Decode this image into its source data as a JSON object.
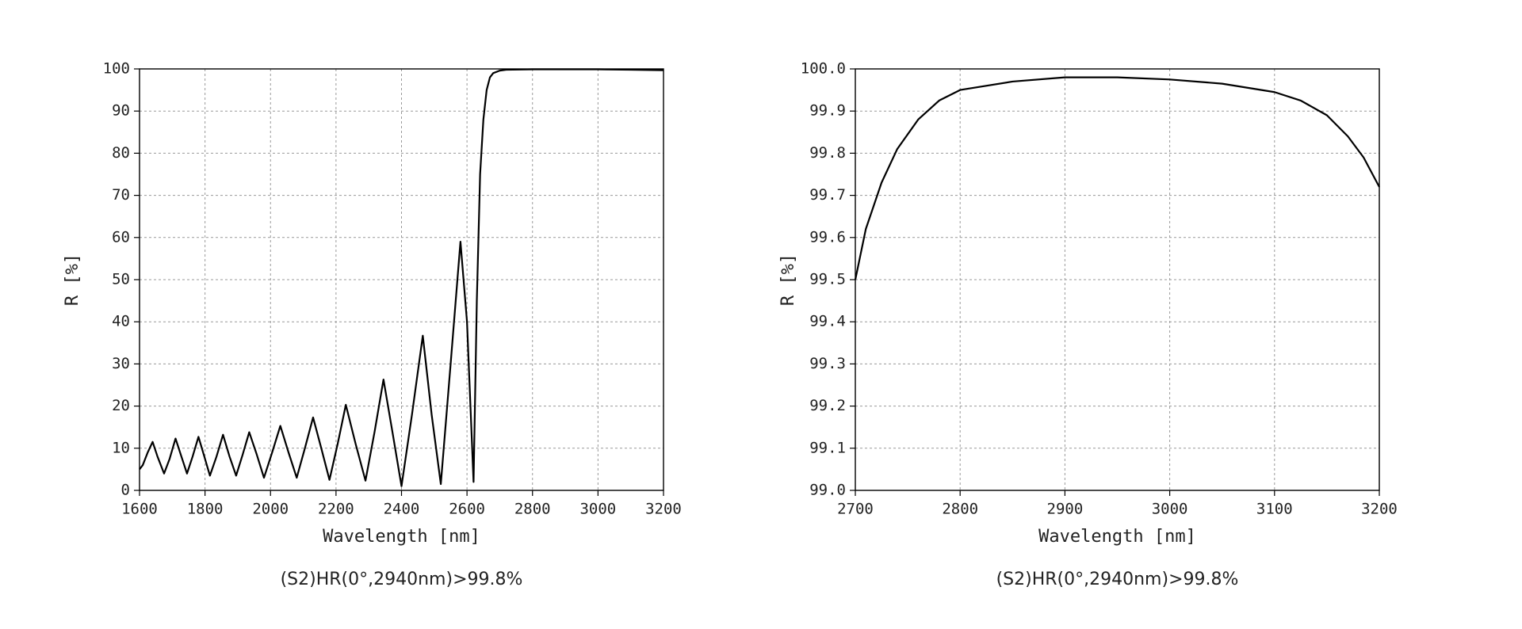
{
  "chart_data": [
    {
      "type": "line",
      "caption": "(S2)HR(0°,2940nm)>99.8%",
      "xlabel": "Wavelength [nm]",
      "ylabel": "R [%]",
      "xlim": [
        1600,
        3200
      ],
      "xticks": [
        1600,
        1800,
        2000,
        2200,
        2400,
        2600,
        2800,
        3000,
        3200
      ],
      "ylim": [
        0,
        100
      ],
      "yticks": [
        0,
        10,
        20,
        30,
        40,
        50,
        60,
        70,
        80,
        90,
        100
      ],
      "grid": true,
      "x": [
        1600,
        1610,
        1625,
        1640,
        1655,
        1675,
        1692,
        1710,
        1728,
        1745,
        1762,
        1780,
        1798,
        1815,
        1835,
        1855,
        1875,
        1895,
        1915,
        1935,
        1958,
        1980,
        2005,
        2030,
        2055,
        2080,
        2105,
        2130,
        2155,
        2180,
        2205,
        2230,
        2260,
        2290,
        2318,
        2345,
        2372,
        2400,
        2432,
        2465,
        2492,
        2520,
        2550,
        2580,
        2600,
        2620,
        2630,
        2640,
        2650,
        2660,
        2670,
        2680,
        2700,
        2720,
        2800,
        2900,
        3000,
        3100,
        3200
      ],
      "series": [
        {
          "color": "#000000",
          "values": [
            5,
            6,
            9,
            11.5,
            8,
            4,
            7.5,
            12.3,
            8,
            4,
            8,
            12.7,
            8,
            3.5,
            8,
            13.2,
            8,
            3.5,
            8.5,
            13.8,
            8.5,
            3,
            9,
            15.3,
            9,
            3,
            10,
            17.3,
            10,
            2.5,
            11,
            20.3,
            11,
            2.3,
            14,
            26.3,
            14,
            1,
            18,
            36.7,
            18,
            1.5,
            30,
            59,
            40,
            2,
            45,
            75,
            88,
            95,
            98,
            99,
            99.6,
            99.8,
            99.9,
            99.9,
            99.9,
            99.8,
            99.7
          ]
        }
      ]
    },
    {
      "type": "line",
      "caption": "(S2)HR(0°,2940nm)>99.8%",
      "xlabel": "Wavelength [nm]",
      "ylabel": "R [%]",
      "xlim": [
        2700,
        3200
      ],
      "xticks": [
        2700,
        2800,
        2900,
        3000,
        3100,
        3200
      ],
      "ylim": [
        99.0,
        100.0
      ],
      "yticks": [
        {
          "value": 99.0,
          "label": "99.0"
        },
        99.1,
        99.2,
        99.3,
        99.4,
        99.5,
        99.6,
        99.7,
        99.8,
        99.9,
        {
          "value": 100.0,
          "label": "100.0"
        }
      ],
      "grid": true,
      "x": [
        2700,
        2710,
        2725,
        2740,
        2760,
        2780,
        2800,
        2850,
        2900,
        2950,
        3000,
        3050,
        3100,
        3125,
        3150,
        3170,
        3185,
        3200
      ],
      "series": [
        {
          "color": "#000000",
          "values": [
            99.5,
            99.62,
            99.73,
            99.81,
            99.88,
            99.925,
            99.95,
            99.97,
            99.98,
            99.98,
            99.975,
            99.965,
            99.945,
            99.925,
            99.89,
            99.84,
            99.79,
            99.72
          ]
        }
      ]
    }
  ]
}
